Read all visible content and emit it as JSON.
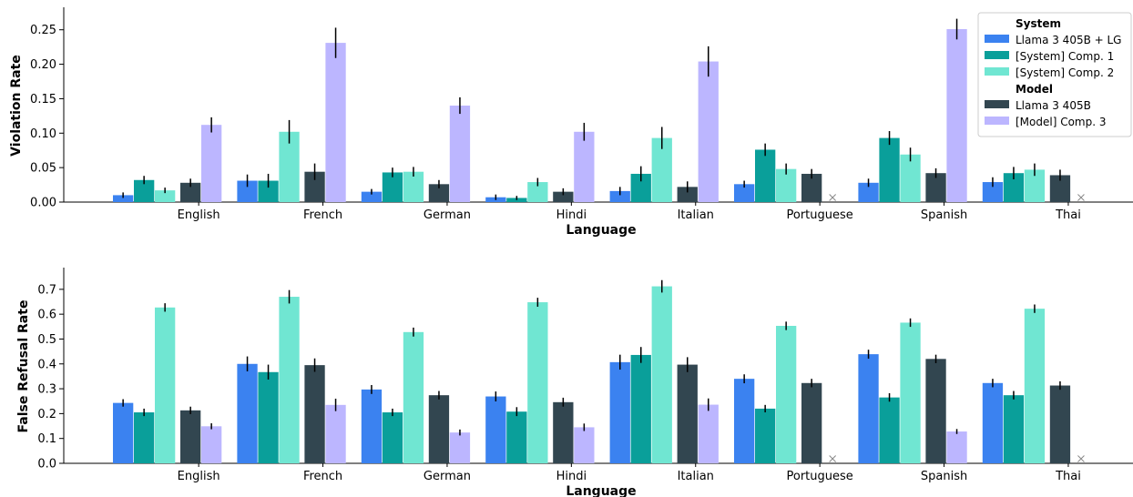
{
  "chart_data": [
    {
      "type": "bar",
      "xlabel": "Language",
      "ylabel": "Violation Rate",
      "ylim": [
        0,
        0.28
      ],
      "yticks": [
        "0.00",
        "0.05",
        "0.10",
        "0.15",
        "0.20",
        "0.25"
      ],
      "categories": [
        "English",
        "French",
        "German",
        "Hindi",
        "Italian",
        "Portuguese",
        "Spanish",
        "Thai"
      ],
      "grid": false,
      "series": [
        {
          "name": "Llama 3 405B + LG",
          "values": [
            0.01,
            0.031,
            0.015,
            0.007,
            0.016,
            0.026,
            0.028,
            0.029
          ],
          "errors": [
            0.004,
            0.009,
            0.004,
            0.004,
            0.006,
            0.005,
            0.006,
            0.007
          ]
        },
        {
          "name": "[System] Comp. 1",
          "values": [
            0.032,
            0.031,
            0.043,
            0.006,
            0.041,
            0.076,
            0.093,
            0.042
          ],
          "errors": [
            0.006,
            0.01,
            0.007,
            0.003,
            0.011,
            0.009,
            0.01,
            0.009
          ]
        },
        {
          "name": "[System] Comp. 2",
          "values": [
            0.017,
            0.102,
            0.044,
            0.029,
            0.093,
            0.048,
            0.069,
            0.047
          ],
          "errors": [
            0.004,
            0.017,
            0.007,
            0.006,
            0.016,
            0.008,
            0.01,
            0.009
          ]
        },
        {
          "name": "Llama 3 405B",
          "values": [
            0.028,
            0.044,
            0.026,
            0.015,
            0.022,
            0.041,
            0.042,
            0.039
          ],
          "errors": [
            0.006,
            0.012,
            0.006,
            0.005,
            0.008,
            0.007,
            0.007,
            0.008
          ]
        },
        {
          "name": "[Model] Comp. 3",
          "values": [
            0.112,
            0.231,
            0.14,
            0.102,
            0.204,
            null,
            0.251,
            null
          ],
          "errors": [
            0.011,
            0.022,
            0.012,
            0.013,
            0.022,
            null,
            0.015,
            null
          ]
        }
      ],
      "missing_marker": "X",
      "legend": {
        "position": "top-right",
        "groups": [
          {
            "title": "System",
            "entries": [
              "Llama 3 405B + LG",
              "[System] Comp. 1",
              "[System] Comp. 2"
            ]
          },
          {
            "title": "Model",
            "entries": [
              "Llama 3 405B",
              "[Model] Comp. 3"
            ]
          }
        ]
      }
    },
    {
      "type": "bar",
      "xlabel": "Language",
      "ylabel": "False Refusal Rate",
      "ylim": [
        0,
        0.78
      ],
      "yticks": [
        "0.0",
        "0.1",
        "0.2",
        "0.3",
        "0.4",
        "0.5",
        "0.6",
        "0.7"
      ],
      "categories": [
        "English",
        "French",
        "German",
        "Hindi",
        "Italian",
        "Portuguese",
        "Spanish",
        "Thai"
      ],
      "grid": false,
      "series": [
        {
          "name": "Llama 3 405B + LG",
          "values": [
            0.243,
            0.4,
            0.297,
            0.269,
            0.407,
            0.34,
            0.439,
            0.323
          ],
          "errors": [
            0.015,
            0.03,
            0.018,
            0.02,
            0.03,
            0.018,
            0.018,
            0.017
          ]
        },
        {
          "name": "[System] Comp. 1",
          "values": [
            0.205,
            0.367,
            0.205,
            0.208,
            0.436,
            0.22,
            0.265,
            0.274
          ],
          "errors": [
            0.015,
            0.03,
            0.015,
            0.018,
            0.032,
            0.015,
            0.017,
            0.017
          ]
        },
        {
          "name": "[System] Comp. 2",
          "values": [
            0.627,
            0.67,
            0.528,
            0.648,
            0.712,
            0.553,
            0.566,
            0.622
          ],
          "errors": [
            0.017,
            0.027,
            0.018,
            0.018,
            0.025,
            0.017,
            0.017,
            0.017
          ]
        },
        {
          "name": "Llama 3 405B",
          "values": [
            0.213,
            0.395,
            0.274,
            0.246,
            0.397,
            0.323,
            0.42,
            0.313
          ],
          "errors": [
            0.015,
            0.027,
            0.017,
            0.018,
            0.03,
            0.017,
            0.017,
            0.017
          ]
        },
        {
          "name": "[Model] Comp. 3",
          "values": [
            0.149,
            0.235,
            0.124,
            0.145,
            0.236,
            null,
            0.128,
            null
          ],
          "errors": [
            0.012,
            0.025,
            0.012,
            0.015,
            0.025,
            null,
            0.01,
            null
          ]
        }
      ],
      "missing_marker": "X"
    }
  ],
  "colors": {
    "Llama 3 405B + LG": "#3b82f0",
    "[System] Comp. 1": "#0a9f9a",
    "[System] Comp. 2": "#70e6d2",
    "Llama 3 405B": "#324650",
    "[Model] Comp. 3": "#bcb6ff"
  }
}
